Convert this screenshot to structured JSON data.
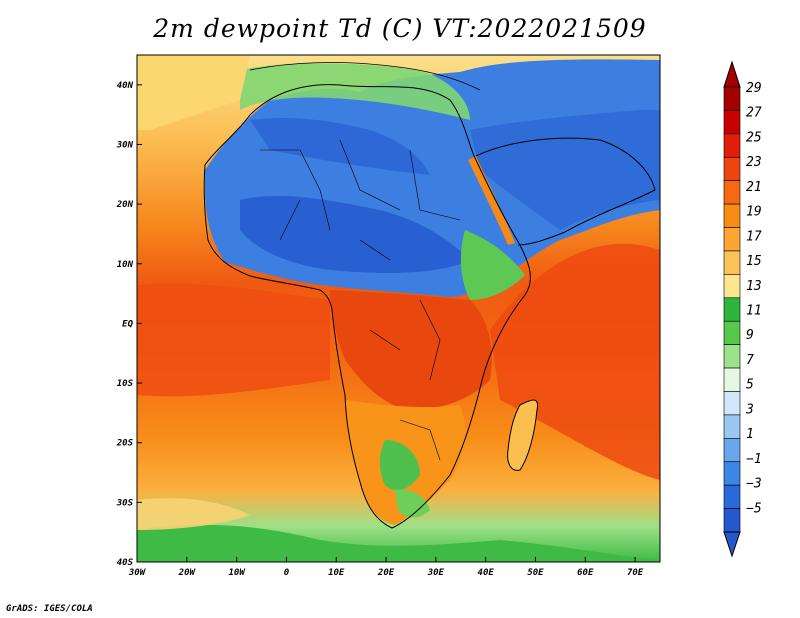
{
  "title": "2m dewpoint Td (C) VT:2022021509",
  "credit": "GrADS: IGES/COLA",
  "map": {
    "lon_range": [
      -30,
      75
    ],
    "lat_range": [
      -40,
      45
    ],
    "lon_ticks": [
      "30W",
      "20W",
      "10W",
      "0",
      "10E",
      "20E",
      "30E",
      "40E",
      "50E",
      "60E",
      "70E"
    ],
    "lat_ticks": [
      "40N",
      "30N",
      "20N",
      "10N",
      "EQ",
      "10S",
      "20S",
      "30S",
      "40S"
    ],
    "lon_tick_values": [
      -30,
      -20,
      -10,
      0,
      10,
      20,
      30,
      40,
      50,
      60,
      70
    ],
    "lat_tick_values": [
      40,
      30,
      20,
      10,
      0,
      -10,
      -20,
      -30,
      -40
    ]
  },
  "colorbar": {
    "labels": [
      "29",
      "27",
      "25",
      "23",
      "21",
      "19",
      "17",
      "15",
      "13",
      "11",
      "9",
      "7",
      "5",
      "3",
      "1",
      "−1",
      "−3",
      "−5"
    ],
    "colors": [
      "#a50000",
      "#c80000",
      "#e11e0a",
      "#f0440f",
      "#f56a10",
      "#f98c12",
      "#fba632",
      "#fcc25a",
      "#fde690",
      "#2fb53c",
      "#55c94a",
      "#9be28c",
      "#e4f8e4",
      "#d2e8fa",
      "#9ac6f2",
      "#6aa6ec",
      "#3e86e6",
      "#2a6ad8",
      "#2458cc"
    ]
  }
}
